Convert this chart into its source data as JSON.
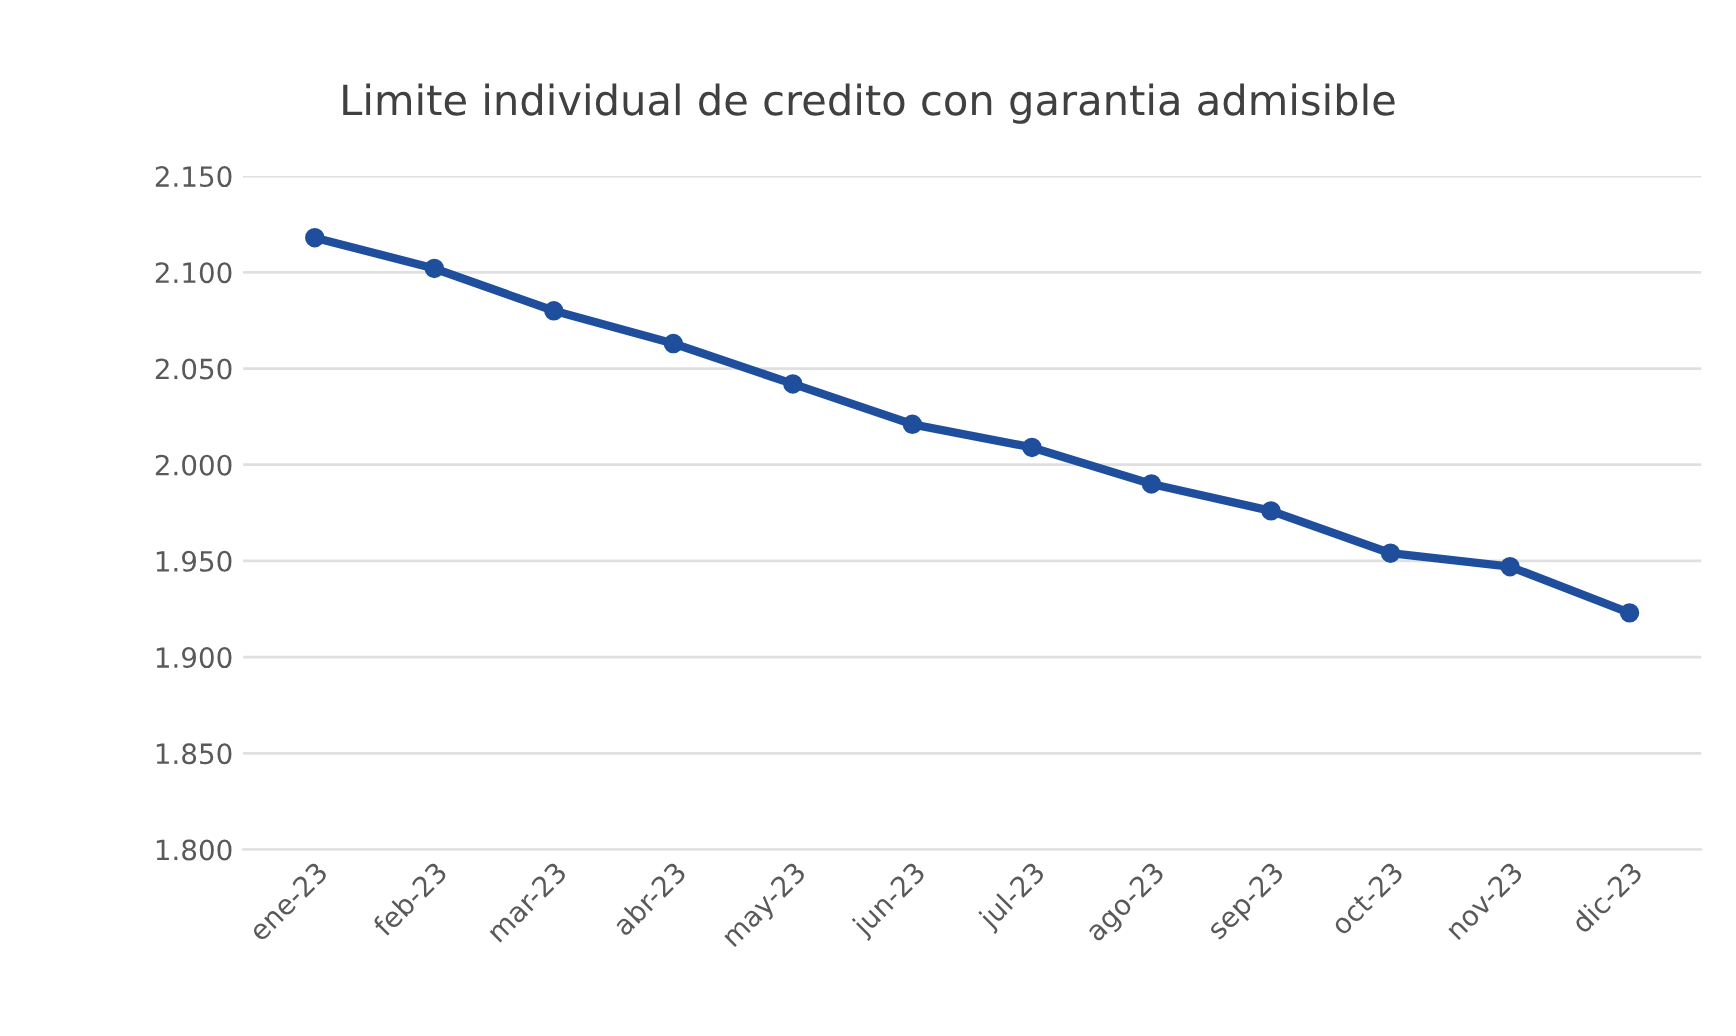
{
  "chart_data": {
    "type": "line",
    "title": "Limite individual de credito con garantia admisible",
    "categories": [
      "ene-23",
      "feb-23",
      "mar-23",
      "abr-23",
      "may-23",
      "jun-23",
      "jul-23",
      "ago-23",
      "sep-23",
      "oct-23",
      "nov-23",
      "dic-23"
    ],
    "series": [
      {
        "color": "#1f4e9c",
        "values": [
          2118,
          2102,
          2080,
          2063,
          2042,
          2021,
          2009,
          1990,
          1976,
          1954,
          1947,
          1923
        ]
      }
    ],
    "ylim": [
      1800,
      2150
    ],
    "yticks": [
      {
        "value": 1800,
        "label": "1.800"
      },
      {
        "value": 1850,
        "label": "1.850"
      },
      {
        "value": 1900,
        "label": "1.900"
      },
      {
        "value": 1950,
        "label": "1.950"
      },
      {
        "value": 2000,
        "label": "2.000"
      },
      {
        "value": 2050,
        "label": "2.050"
      },
      {
        "value": 2100,
        "label": "2.100"
      },
      {
        "value": 2150,
        "label": "2.150"
      }
    ],
    "grid": "y",
    "marker": "circle",
    "line_style": "solid"
  }
}
